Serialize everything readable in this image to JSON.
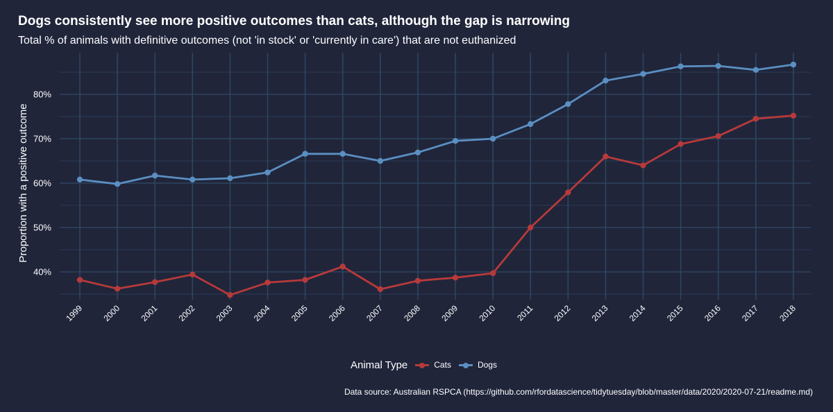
{
  "chart_data": {
    "type": "line",
    "title": "Dogs consistently see more positive outcomes than cats, although the gap is narrowing",
    "subtitle": "Total % of animals with definitive outcomes (not 'in stock' or 'currently in care') that are not euthanized",
    "xlabel": "",
    "ylabel": "Proportion with a positive outcome",
    "x": [
      "1999",
      "2000",
      "2001",
      "2002",
      "2003",
      "2004",
      "2005",
      "2006",
      "2007",
      "2008",
      "2009",
      "2010",
      "2011",
      "2012",
      "2013",
      "2014",
      "2015",
      "2016",
      "2017",
      "2018"
    ],
    "y_ticks": [
      40,
      50,
      60,
      70,
      80
    ],
    "y_tick_labels": [
      "40%",
      "50%",
      "60%",
      "70%",
      "80%"
    ],
    "ylim": [
      34,
      91
    ],
    "grid": true,
    "series": [
      {
        "name": "Cats",
        "color": "#b73a3a",
        "values": [
          38.2,
          36.2,
          37.7,
          39.4,
          34.8,
          37.6,
          38.2,
          41.2,
          36.1,
          38.0,
          38.7,
          39.7,
          50.0,
          57.9,
          66.0,
          64.0,
          68.8,
          70.6,
          74.5,
          75.2
        ]
      },
      {
        "name": "Dogs",
        "color": "#5b8fc2",
        "values": [
          60.8,
          59.8,
          61.7,
          60.8,
          61.1,
          62.4,
          66.6,
          66.6,
          65.0,
          66.9,
          69.5,
          70.0,
          73.3,
          77.8,
          83.1,
          84.6,
          86.3,
          86.4,
          85.5,
          86.7
        ]
      }
    ],
    "legend": {
      "title": "Animal Type",
      "position": "bottom"
    },
    "caption": "Data source: Australian RSPCA (https://github.com/rfordatascience/tidytuesday/blob/master/data/2020/2020-07-21/readme.md)"
  },
  "colors": {
    "background": "#20253a",
    "grid": "#2e4560",
    "text": "#ffffff",
    "cats": "#b73a3a",
    "dogs": "#5b8fc2"
  }
}
